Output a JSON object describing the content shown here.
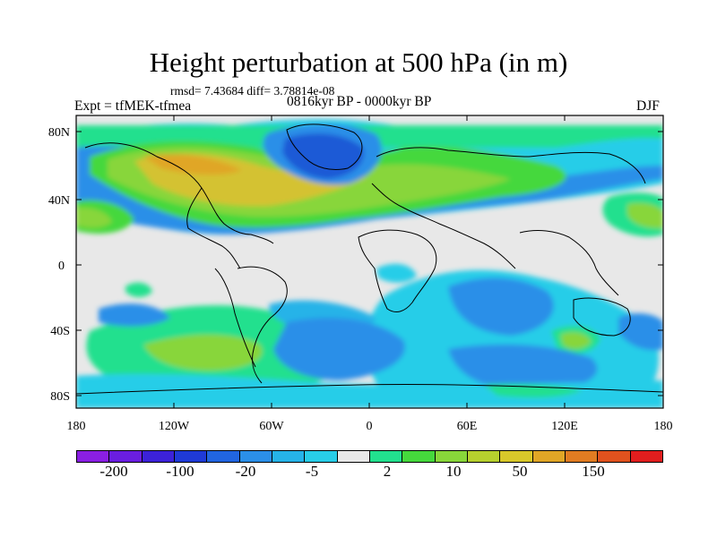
{
  "title": "Height perturbation at 500 hPa (in m)",
  "stats_line": "rmsd= 7.43684 diff= 3.78814e-08",
  "experiment_label": "Expt = tfMEK-tfmea",
  "period_label": "0816kyr BP - 0000kyr BP",
  "season_label": "DJF",
  "map": {
    "projection": "cylindrical equidistant",
    "lat_range": [
      -90,
      90
    ],
    "lon_range": [
      -180,
      180
    ],
    "y_ticks": [
      "80N",
      "40N",
      "0",
      "40S",
      "80S"
    ],
    "x_ticks": [
      "180",
      "120W",
      "60W",
      "0",
      "60E",
      "120E",
      "180"
    ]
  },
  "colorbar": {
    "colors": [
      "#8a1fe3",
      "#6a1ee0",
      "#3c22d9",
      "#1f3ad6",
      "#2165e0",
      "#2b8fe8",
      "#26b3e8",
      "#28cde8",
      "#e8e8e8",
      "#22e08e",
      "#45d83c",
      "#88d63a",
      "#b6d02e",
      "#d8c82a",
      "#e0a626",
      "#e07c22",
      "#e0521e",
      "#e01e1e"
    ],
    "labels": [
      "-200",
      "-100",
      "-20",
      "-5",
      "2",
      "10",
      "50",
      "150"
    ]
  },
  "field_regions": [
    {
      "level": "-20",
      "color": "#1f5ad6",
      "area": "Greenland / North Atlantic low"
    },
    {
      "level": "50",
      "color": "#d4c232",
      "area": "North American / Atlantic ridge"
    },
    {
      "level": "-5",
      "color": "#2b8fe8",
      "area": "Southern Ocean bands"
    },
    {
      "level": "10",
      "color": "#88d63a",
      "area": "South Pacific ridge"
    }
  ]
}
